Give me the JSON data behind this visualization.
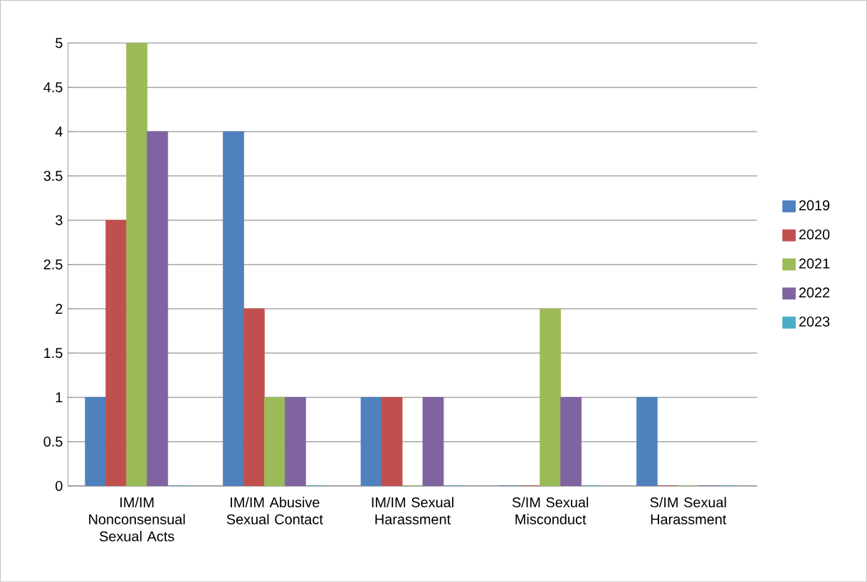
{
  "chart_data": {
    "type": "bar",
    "categories": [
      "IM/IM Nonconsensual Sexual Acts",
      "IM/IM Abusive Sexual Contact",
      "IM/IM Sexual Harassment",
      "S/IM Sexual Misconduct",
      "S/IM Sexual Harassment"
    ],
    "series": [
      {
        "name": "2019",
        "color": "#4f81bd",
        "values": [
          1,
          4,
          1,
          0,
          1
        ]
      },
      {
        "name": "2020",
        "color": "#c0504d",
        "values": [
          3,
          2,
          1,
          0,
          0
        ]
      },
      {
        "name": "2021",
        "color": "#9bbb59",
        "values": [
          5,
          1,
          0,
          2,
          0
        ]
      },
      {
        "name": "2022",
        "color": "#8064a2",
        "values": [
          4,
          1,
          1,
          1,
          0
        ]
      },
      {
        "name": "2023",
        "color": "#4bacc6",
        "values": [
          0,
          0,
          0,
          0,
          0
        ]
      }
    ],
    "ylim": [
      0,
      5
    ],
    "yticks": [
      0,
      0.5,
      1,
      1.5,
      2,
      2.5,
      3,
      3.5,
      4,
      4.5,
      5
    ],
    "grid": "y",
    "legend": "right"
  }
}
